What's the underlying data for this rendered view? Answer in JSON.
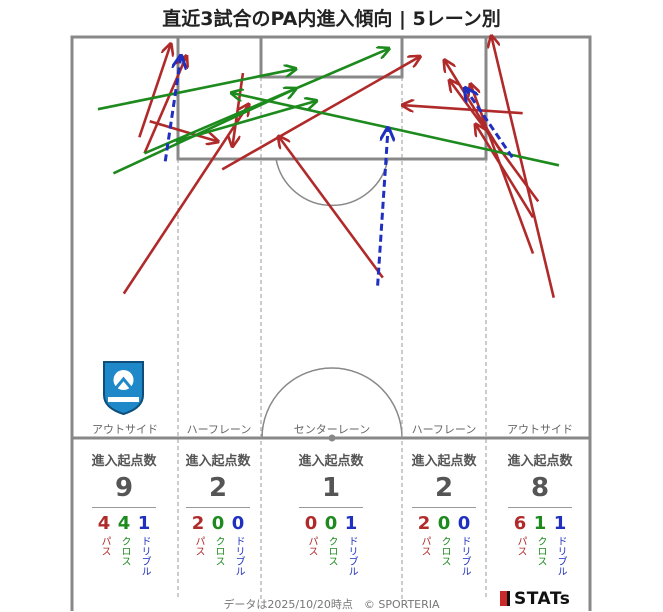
{
  "title": "直近3試合のPA内進入傾向 | 5レーン別",
  "lanes": [
    {
      "label": "アウトサイド",
      "stat_label": "進入起点数",
      "total": "9",
      "pass": "4",
      "cross": "4",
      "dribble": "1"
    },
    {
      "label": "ハーフレーン",
      "stat_label": "進入起点数",
      "total": "2",
      "pass": "2",
      "cross": "0",
      "dribble": "0"
    },
    {
      "label": "センターレーン",
      "stat_label": "進入起点数",
      "total": "1",
      "pass": "0",
      "cross": "0",
      "dribble": "1"
    },
    {
      "label": "ハーフレーン",
      "stat_label": "進入起点数",
      "total": "2",
      "pass": "2",
      "cross": "0",
      "dribble": "0"
    },
    {
      "label": "アウトサイド",
      "stat_label": "進入起点数",
      "total": "8",
      "pass": "6",
      "cross": "1",
      "dribble": "1"
    }
  ],
  "legend_labels": {
    "pass": "パス",
    "cross": "クロス",
    "dribble": "ドリブル"
  },
  "footer": "データは2025/10/20時点　© SPORTERIA",
  "brand": "STATs",
  "colors": {
    "pass": "#b02a2a",
    "cross": "#1d8a1d",
    "dribble": "#1f2fbf",
    "lines": "#888888"
  },
  "chart_data": {
    "type": "arrow-map",
    "title": "直近3試合のPA内進入傾向 | 5レーン別",
    "lanes": [
      "アウトサイド",
      "ハーフレーン",
      "センターレーン",
      "ハーフレーン",
      "アウトサイド"
    ],
    "entries": [
      {
        "kind": "pass",
        "from": [
          0.1,
          0.64
        ],
        "to": [
          0.34,
          0.17
        ]
      },
      {
        "kind": "pass",
        "from": [
          0.13,
          0.25
        ],
        "to": [
          0.19,
          0.02
        ]
      },
      {
        "kind": "pass",
        "from": [
          0.14,
          0.29
        ],
        "to": [
          0.22,
          0.05
        ]
      },
      {
        "kind": "pass",
        "from": [
          0.15,
          0.21
        ],
        "to": [
          0.28,
          0.26
        ]
      },
      {
        "kind": "pass",
        "from": [
          0.29,
          0.33
        ],
        "to": [
          0.67,
          0.05
        ]
      },
      {
        "kind": "pass",
        "from": [
          0.6,
          0.6
        ],
        "to": [
          0.4,
          0.25
        ]
      },
      {
        "kind": "pass",
        "from": [
          0.33,
          0.09
        ],
        "to": [
          0.31,
          0.27
        ]
      },
      {
        "kind": "pass",
        "from": [
          0.87,
          0.19
        ],
        "to": [
          0.64,
          0.17
        ]
      },
      {
        "kind": "pass",
        "from": [
          0.83,
          0.29
        ],
        "to": [
          0.72,
          0.06
        ]
      },
      {
        "kind": "pass",
        "from": [
          0.9,
          0.41
        ],
        "to": [
          0.73,
          0.11
        ]
      },
      {
        "kind": "pass",
        "from": [
          0.93,
          0.65
        ],
        "to": [
          0.81,
          0.0
        ]
      },
      {
        "kind": "pass",
        "from": [
          0.89,
          0.54
        ],
        "to": [
          0.77,
          0.12
        ]
      },
      {
        "kind": "pass",
        "from": [
          0.89,
          0.45
        ],
        "to": [
          0.78,
          0.22
        ]
      },
      {
        "kind": "cross",
        "from": [
          0.05,
          0.18
        ],
        "to": [
          0.43,
          0.08
        ]
      },
      {
        "kind": "cross",
        "from": [
          0.08,
          0.34
        ],
        "to": [
          0.43,
          0.13
        ]
      },
      {
        "kind": "cross",
        "from": [
          0.2,
          0.26
        ],
        "to": [
          0.47,
          0.16
        ]
      },
      {
        "kind": "cross",
        "from": [
          0.14,
          0.29
        ],
        "to": [
          0.61,
          0.03
        ]
      },
      {
        "kind": "cross",
        "from": [
          0.94,
          0.32
        ],
        "to": [
          0.31,
          0.14
        ]
      },
      {
        "kind": "dribble",
        "from": [
          0.18,
          0.31
        ],
        "to": [
          0.21,
          0.05
        ]
      },
      {
        "kind": "dribble",
        "from": [
          0.59,
          0.62
        ],
        "to": [
          0.61,
          0.23
        ]
      },
      {
        "kind": "dribble",
        "from": [
          0.85,
          0.3
        ],
        "to": [
          0.76,
          0.13
        ]
      }
    ]
  }
}
